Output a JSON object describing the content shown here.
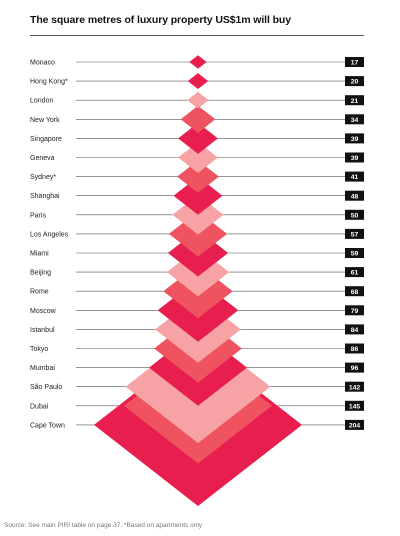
{
  "title": "The square metres of luxury property US$1m will buy",
  "source": "Source: See main PIRI table on page 37. *Based on apartments only",
  "colors": {
    "light": "#F7A2A4",
    "mid": "#EE535F",
    "dark": "#E81F4E",
    "line": "#555555",
    "badge": "#111111"
  },
  "chart_data": {
    "type": "bar",
    "title": "The square metres of luxury property US$1m will buy",
    "categories": [
      "Monaco",
      "Hong Kong*",
      "London",
      "New York",
      "Singapore",
      "Geneva",
      "Sydney*",
      "Shanghai",
      "Paris",
      "Los Angeles",
      "Miami",
      "Beijing",
      "Rome",
      "Moscow",
      "Istanbul",
      "Tokyo",
      "Mumbai",
      "São Paulo",
      "Dubai",
      "Cape Town"
    ],
    "values": [
      17,
      20,
      21,
      34,
      39,
      39,
      41,
      48,
      50,
      57,
      59,
      61,
      68,
      79,
      84,
      86,
      96,
      142,
      145,
      204
    ],
    "color_cycle": [
      "dark",
      "dark",
      "light",
      "mid",
      "dark",
      "light",
      "mid",
      "dark",
      "light",
      "mid",
      "dark",
      "light",
      "mid",
      "dark",
      "light",
      "mid",
      "dark",
      "light",
      "mid",
      "dark"
    ],
    "xlim": [
      0,
      204
    ],
    "xlabel": "",
    "ylabel": ""
  }
}
